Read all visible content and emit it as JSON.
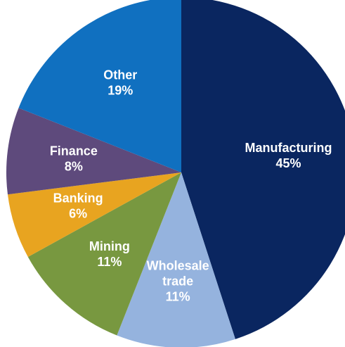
{
  "chart_data": {
    "type": "pie",
    "start": "12 o'clock",
    "direction": "clockwise",
    "slices": [
      {
        "name": "Manufacturing",
        "label_lines": [
          "Manufacturing",
          "45%"
        ],
        "value": 45,
        "color": "#0a2660",
        "text_color": "#ffffff"
      },
      {
        "name": "Wholesale trade",
        "label_lines": [
          "Wholesale",
          "trade",
          "11%"
        ],
        "value": 11,
        "color": "#95b3de",
        "text_color": "#ffffff"
      },
      {
        "name": "Mining",
        "label_lines": [
          "Mining",
          "11%"
        ],
        "value": 11,
        "color": "#789840",
        "text_color": "#ffffff"
      },
      {
        "name": "Banking",
        "label_lines": [
          "Banking",
          "6%"
        ],
        "value": 6,
        "color": "#e8a420",
        "text_color": "#ffffff"
      },
      {
        "name": "Finance",
        "label_lines": [
          "Finance",
          "8%"
        ],
        "value": 8,
        "color": "#5e4a7c",
        "text_color": "#ffffff"
      },
      {
        "name": "Other",
        "label_lines": [
          "Other",
          "19%"
        ],
        "value": 19,
        "color": "#1070c0",
        "text_color": "#ffffff"
      }
    ]
  }
}
